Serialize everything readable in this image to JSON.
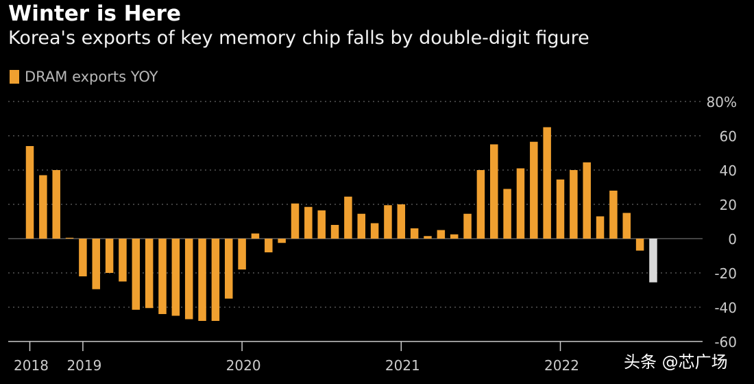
{
  "header": {
    "title": "Winter is Here",
    "subtitle": "Korea's exports of key memory chip falls by double-digit figure"
  },
  "watermark": "头条 @芯广场",
  "colors": {
    "bar": "#f0a030",
    "highlight": "#d9d9d9",
    "grid": "#555555",
    "axis": "#cccccc",
    "text": "#cccccc"
  },
  "chart_data": {
    "type": "bar",
    "title": "Winter is Here",
    "subtitle": "Korea's exports of key memory chip falls by double-digit figure",
    "legend": "DRAM exports YOY",
    "legend_position": "top-left",
    "ylim": [
      -60,
      80
    ],
    "y_ticks": [
      80,
      60,
      40,
      20,
      0,
      -20,
      -40,
      -60
    ],
    "y_tick_labels": [
      "80%",
      "60",
      "40",
      "20",
      "0",
      "-20",
      "-40",
      "-60"
    ],
    "x_year_labels": [
      {
        "label": "2018",
        "month_index": 0
      },
      {
        "label": "2019",
        "month_index": 4
      },
      {
        "label": "2020",
        "month_index": 16
      },
      {
        "label": "2021",
        "month_index": 28
      },
      {
        "label": "2022",
        "month_index": 40
      }
    ],
    "months": [
      "2018-09",
      "2018-10",
      "2018-11",
      "2018-12",
      "2019-01",
      "2019-02",
      "2019-03",
      "2019-04",
      "2019-05",
      "2019-06",
      "2019-07",
      "2019-08",
      "2019-09",
      "2019-10",
      "2019-11",
      "2019-12",
      "2020-01",
      "2020-02",
      "2020-03",
      "2020-04",
      "2020-05",
      "2020-06",
      "2020-07",
      "2020-08",
      "2020-09",
      "2020-10",
      "2020-11",
      "2020-12",
      "2021-01",
      "2021-02",
      "2021-03",
      "2021-04",
      "2021-05",
      "2021-06",
      "2021-07",
      "2021-08",
      "2021-09",
      "2021-10",
      "2021-11",
      "2021-12",
      "2022-01",
      "2022-02",
      "2022-03",
      "2022-04",
      "2022-05",
      "2022-06",
      "2022-07"
    ],
    "series": [
      {
        "name": "DRAM exports YOY",
        "values": [
          54,
          37,
          40,
          0.5,
          -22,
          -29.5,
          -20,
          -25,
          -41.5,
          -40.5,
          -44,
          -45,
          -47,
          -48,
          -48,
          -35,
          -18,
          3,
          -8,
          -2.5,
          20.5,
          18.5,
          16.5,
          8,
          24.5,
          14.5,
          9,
          19.5,
          20,
          6,
          1.5,
          5,
          2.5,
          14.5,
          40,
          55,
          29,
          41,
          56.5,
          65,
          34.5,
          40,
          44.5,
          13,
          28,
          15,
          -7
        ],
        "highlight_last": -25.5
      }
    ]
  }
}
